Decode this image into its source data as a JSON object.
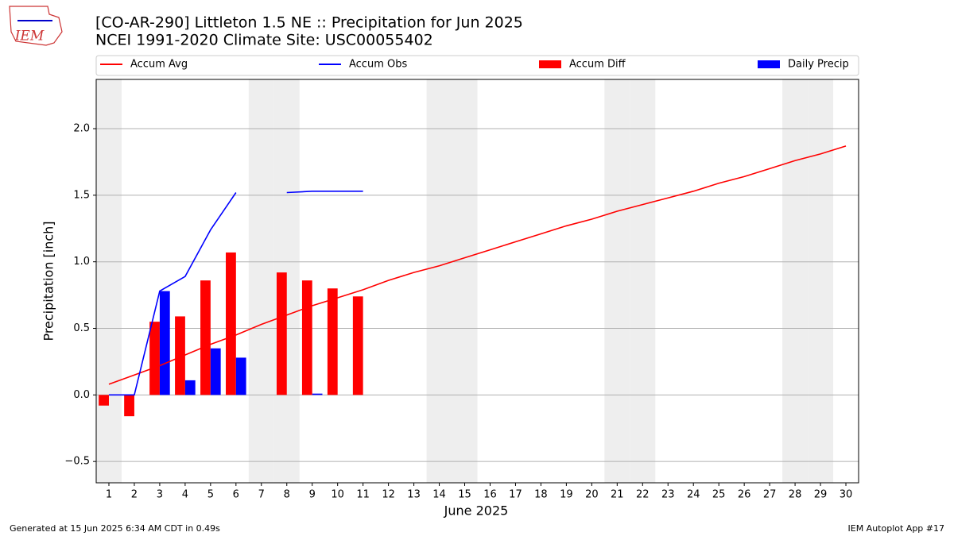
{
  "chart_data": {
    "type": "combo",
    "title": "[CO-AR-290] Littleton 1.5 NE :: Precipitation for Jun 2025",
    "subtitle": "NCEI 1991-2020 Climate Site: USC00055402",
    "logo_text": "IEM",
    "xlabel": "June 2025",
    "ylabel": "Precipitation [inch]",
    "footer_left": "Generated at 15 Jun 2025 6:34 AM CDT in 0.49s",
    "footer_right": "IEM Autoplot App #17",
    "x": [
      1,
      2,
      3,
      4,
      5,
      6,
      7,
      8,
      9,
      10,
      11,
      12,
      13,
      14,
      15,
      16,
      17,
      18,
      19,
      20,
      21,
      22,
      23,
      24,
      25,
      26,
      27,
      28,
      29,
      30
    ],
    "xlim": [
      0.5,
      30.5
    ],
    "xticks": [
      1,
      2,
      3,
      4,
      5,
      6,
      7,
      8,
      9,
      10,
      11,
      12,
      13,
      14,
      15,
      16,
      17,
      18,
      19,
      20,
      21,
      22,
      23,
      24,
      25,
      26,
      27,
      28,
      29,
      30
    ],
    "ylim": [
      -0.66,
      2.37
    ],
    "yticks": [
      {
        "value": -0.5,
        "label": "−0.5"
      },
      {
        "value": 0,
        "label": "0.0"
      },
      0.5,
      {
        "value": 1,
        "label": "1.0"
      },
      1.5,
      {
        "value": 2,
        "label": "2.0"
      }
    ],
    "grid": true,
    "shaded_days": [
      1,
      7,
      8,
      14,
      15,
      21,
      22,
      28,
      29
    ],
    "shade_color": "#eeeeee",
    "series": [
      {
        "name": "Accum Avg",
        "type": "line",
        "color": "#ff0000",
        "values": [
          0.08,
          0.15,
          0.22,
          0.3,
          0.38,
          0.45,
          0.53,
          0.6,
          0.67,
          0.73,
          0.79,
          0.86,
          0.92,
          0.97,
          1.03,
          1.09,
          1.15,
          1.21,
          1.27,
          1.32,
          1.38,
          1.43,
          1.48,
          1.53,
          1.59,
          1.64,
          1.7,
          1.76,
          1.81,
          1.87
        ]
      },
      {
        "name": "Accum Obs",
        "type": "line",
        "color": "#0000ff",
        "values": [
          0,
          0,
          0.78,
          0.89,
          1.24,
          1.52,
          null,
          1.52,
          1.53,
          1.53,
          1.53,
          null,
          null,
          null,
          null,
          null,
          null,
          null,
          null,
          null,
          null,
          null,
          null,
          null,
          null,
          null,
          null,
          null,
          null,
          null
        ]
      },
      {
        "name": "Accum Diff",
        "type": "bar",
        "color": "#ff0000",
        "values": [
          -0.08,
          -0.16,
          0.55,
          0.59,
          0.86,
          1.07,
          null,
          0.92,
          0.86,
          0.8,
          0.74,
          null,
          null,
          null,
          null,
          null,
          null,
          null,
          null,
          null,
          null,
          null,
          null,
          null,
          null,
          null,
          null,
          null,
          null,
          null
        ]
      },
      {
        "name": "Daily Precip",
        "type": "bar",
        "color": "#0000ff",
        "values": [
          0,
          0,
          0.78,
          0.11,
          0.35,
          0.28,
          null,
          0,
          0.01,
          0,
          0,
          null,
          null,
          null,
          null,
          null,
          null,
          null,
          null,
          null,
          null,
          null,
          null,
          null,
          null,
          null,
          null,
          null,
          null,
          null
        ]
      }
    ]
  }
}
